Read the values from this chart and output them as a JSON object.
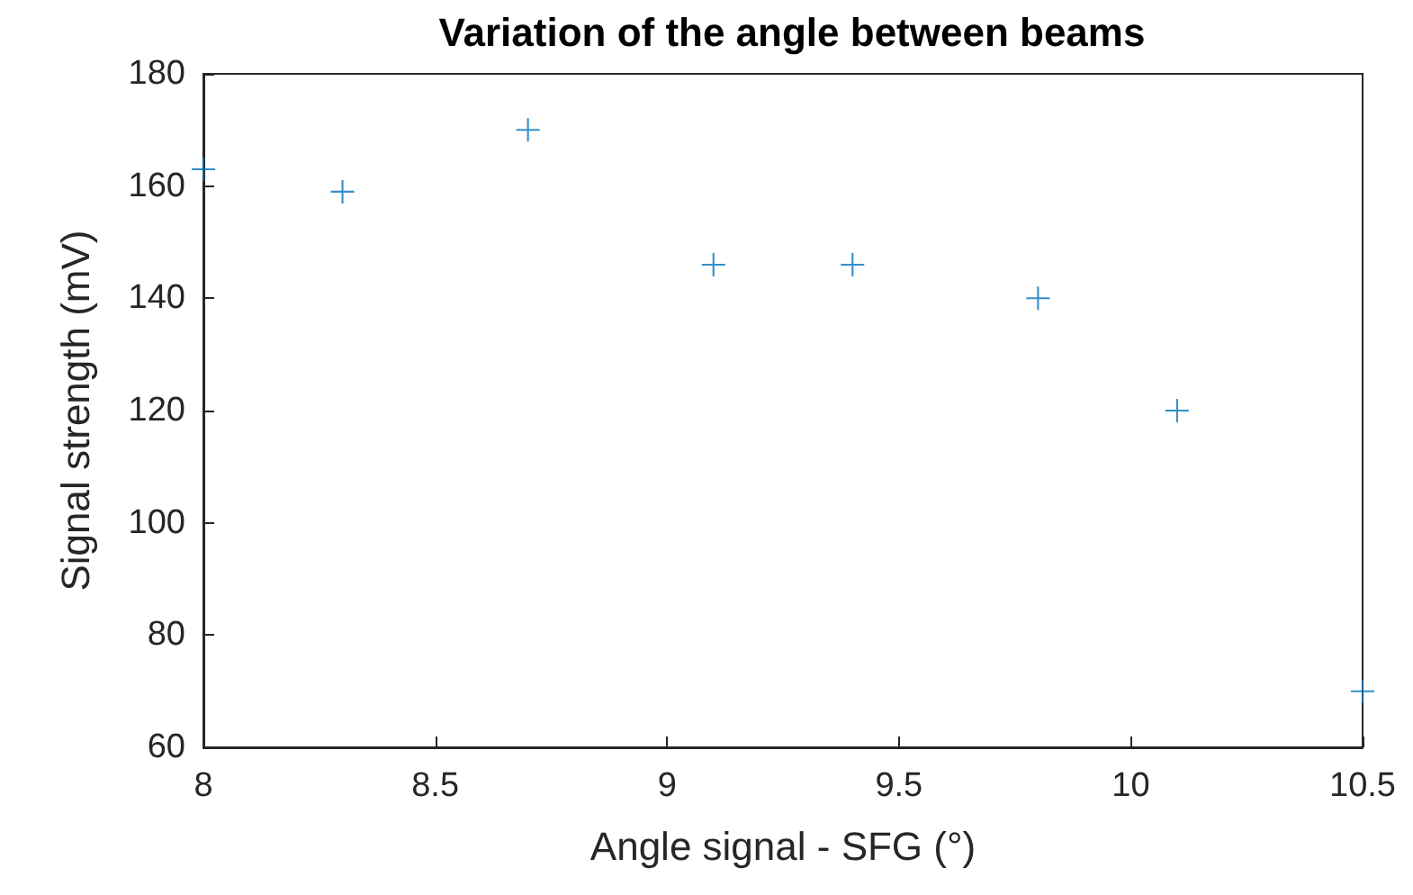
{
  "chart_data": {
    "type": "scatter",
    "title": "Variation of the angle between beams",
    "xlabel": "Angle signal - SFG (°)",
    "ylabel": "Signal strength (mV)",
    "series": [
      {
        "color": "#0072bd",
        "x": [
          8,
          8.3,
          8.7,
          9.1,
          9.4,
          9.8,
          10.1,
          10.5
        ],
        "values": [
          163,
          159,
          170,
          146,
          146,
          140,
          120,
          70
        ]
      }
    ],
    "xlim": [
      8,
      10.5
    ],
    "xticks": [
      8,
      8.5,
      9,
      9.5,
      10,
      10.5
    ],
    "ylim": [
      60,
      180
    ],
    "yticks": [
      60,
      80,
      100,
      120,
      140,
      160,
      180
    ],
    "marker": "cross",
    "grid": false
  }
}
